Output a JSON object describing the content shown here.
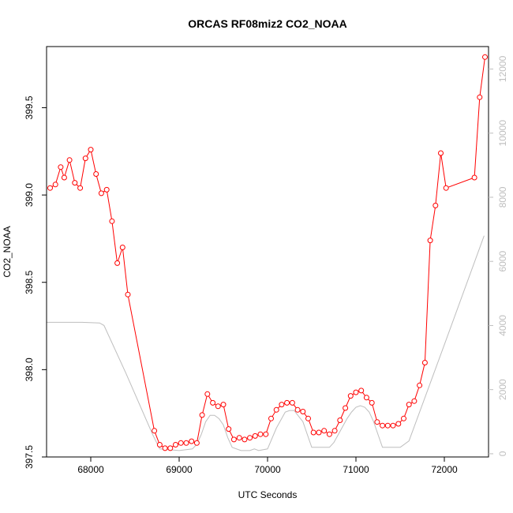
{
  "chart_data": {
    "type": "line",
    "title": "ORCAS RF08miz2 CO2_NOAA",
    "xlabel": "UTC Seconds",
    "ylabel": "CO2_NOAA",
    "xlim": [
      67500,
      72500
    ],
    "ylim": [
      397.5,
      399.85
    ],
    "y2lim": [
      -100,
      12700
    ],
    "x_ticks": [
      68000,
      69000,
      70000,
      71000,
      72000
    ],
    "y_ticks": [
      397.5,
      398.0,
      398.5,
      399.0,
      399.5
    ],
    "y2_ticks": [
      0,
      2000,
      4000,
      6000,
      8000,
      10000,
      12000
    ],
    "grid": false,
    "series": [
      {
        "axis": "left",
        "color": "#ff0000",
        "marker": "open-circle",
        "x": [
          67540,
          67600,
          67660,
          67700,
          67760,
          67820,
          67880,
          67940,
          68000,
          68060,
          68120,
          68180,
          68240,
          68300,
          68360,
          68420,
          68720,
          68780,
          68840,
          68900,
          68960,
          69020,
          69080,
          69140,
          69200,
          69260,
          69320,
          69380,
          69440,
          69500,
          69560,
          69620,
          69680,
          69740,
          69800,
          69860,
          69920,
          69980,
          70040,
          70100,
          70160,
          70220,
          70280,
          70340,
          70400,
          70460,
          70520,
          70580,
          70640,
          70700,
          70760,
          70820,
          70880,
          70940,
          71000,
          71060,
          71120,
          71180,
          71240,
          71300,
          71360,
          71420,
          71480,
          71540,
          71600,
          71660,
          71720,
          71780,
          71840,
          71900,
          71960,
          72020,
          72340,
          72400,
          72460
        ],
        "y": [
          399.04,
          399.06,
          399.16,
          399.1,
          399.2,
          399.07,
          399.04,
          399.21,
          399.26,
          399.12,
          399.01,
          399.03,
          398.85,
          398.61,
          398.7,
          398.43,
          397.65,
          397.57,
          397.55,
          397.55,
          397.57,
          397.58,
          397.58,
          397.59,
          397.58,
          397.74,
          397.86,
          397.81,
          397.79,
          397.8,
          397.66,
          397.6,
          397.61,
          397.6,
          397.61,
          397.62,
          397.63,
          397.63,
          397.72,
          397.77,
          397.8,
          397.81,
          397.81,
          397.77,
          397.76,
          397.72,
          397.64,
          397.64,
          397.65,
          397.63,
          397.65,
          397.71,
          397.78,
          397.85,
          397.87,
          397.88,
          397.84,
          397.81,
          397.7,
          397.68,
          397.68,
          397.68,
          397.69,
          397.72,
          397.8,
          397.82,
          397.91,
          398.04,
          398.74,
          398.94,
          399.24,
          399.04,
          399.1,
          399.56,
          399.79
        ]
      },
      {
        "axis": "right",
        "color": "#bebebe",
        "marker": "none",
        "x": [
          67500,
          67900,
          68100,
          68150,
          68400,
          68700,
          68780,
          69000,
          69150,
          69200,
          69250,
          69300,
          69350,
          69400,
          69450,
          69500,
          69550,
          69600,
          69700,
          69800,
          69850,
          69900,
          70000,
          70100,
          70200,
          70250,
          70300,
          70400,
          70450,
          70500,
          70700,
          70750,
          70800,
          70900,
          70950,
          71000,
          71050,
          71100,
          71150,
          71200,
          71250,
          71300,
          71400,
          71500,
          71600,
          71800,
          72000,
          72450
        ],
        "y": [
          4100,
          4100,
          4080,
          4000,
          2500,
          600,
          150,
          100,
          150,
          300,
          600,
          1000,
          1200,
          1200,
          1100,
          900,
          500,
          200,
          100,
          100,
          150,
          100,
          150,
          800,
          1300,
          1350,
          1350,
          1000,
          600,
          200,
          200,
          350,
          600,
          1100,
          1300,
          1450,
          1500,
          1450,
          1300,
          1000,
          600,
          200,
          200,
          200,
          400,
          1900,
          3400,
          6800
        ]
      }
    ]
  }
}
